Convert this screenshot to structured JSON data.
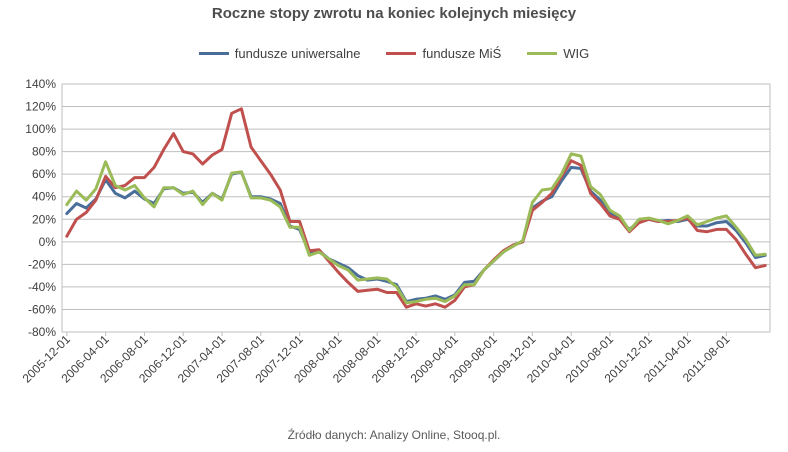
{
  "chart_data": {
    "type": "line",
    "title": "Roczne stopy zwrotu na koniec kolejnych miesięcy",
    "source": "Źródło danych: Analizy Online, Stooq.pl.",
    "xlabel": "",
    "ylabel": "",
    "ylim": [
      -0.8,
      1.4
    ],
    "yticks": [
      "140%",
      "120%",
      "100%",
      "80%",
      "60%",
      "40%",
      "20%",
      "0%",
      "-20%",
      "-40%",
      "-60%",
      "-80%"
    ],
    "x_tick_labels": [
      "2005-12-01",
      "2006-04-01",
      "2006-08-01",
      "2006-12-01",
      "2007-04-01",
      "2007-08-01",
      "2007-12-01",
      "2008-04-01",
      "2008-08-01",
      "2008-12-01",
      "2009-04-01",
      "2009-08-01",
      "2009-12-01",
      "2010-04-01",
      "2010-08-01",
      "2010-12-01",
      "2011-04-01",
      "2011-08-01"
    ],
    "x_start": "2005-12",
    "x_end": "2011-11",
    "grid": true,
    "legend_position": "top-center",
    "series": [
      {
        "name": "fundusze uniwersalne",
        "color": "#4a6e9a",
        "values": [
          0.25,
          0.34,
          0.3,
          0.38,
          0.55,
          0.43,
          0.39,
          0.45,
          0.38,
          0.34,
          0.47,
          0.48,
          0.43,
          0.44,
          0.35,
          0.43,
          0.38,
          0.6,
          0.62,
          0.4,
          0.4,
          0.38,
          0.34,
          0.14,
          0.11,
          -0.1,
          -0.08,
          -0.15,
          -0.19,
          -0.23,
          -0.3,
          -0.34,
          -0.33,
          -0.35,
          -0.38,
          -0.53,
          -0.51,
          -0.5,
          -0.48,
          -0.51,
          -0.47,
          -0.36,
          -0.35,
          -0.25,
          -0.17,
          -0.09,
          -0.03,
          0.0,
          0.3,
          0.36,
          0.4,
          0.54,
          0.66,
          0.65,
          0.45,
          0.37,
          0.25,
          0.2,
          0.11,
          0.18,
          0.2,
          0.18,
          0.19,
          0.18,
          0.2,
          0.14,
          0.14,
          0.17,
          0.18,
          0.1,
          -0.01,
          -0.14,
          -0.12
        ]
      },
      {
        "name": "fundusze MiŚ",
        "color": "#c0504d",
        "values": [
          0.05,
          0.2,
          0.26,
          0.37,
          0.58,
          0.48,
          0.5,
          0.57,
          0.57,
          0.66,
          0.82,
          0.96,
          0.8,
          0.78,
          0.69,
          0.77,
          0.82,
          1.14,
          1.18,
          0.84,
          0.72,
          0.6,
          0.46,
          0.18,
          0.18,
          -0.08,
          -0.07,
          -0.17,
          -0.27,
          -0.36,
          -0.44,
          -0.43,
          -0.42,
          -0.45,
          -0.45,
          -0.58,
          -0.55,
          -0.57,
          -0.55,
          -0.58,
          -0.52,
          -0.4,
          -0.38,
          -0.25,
          -0.16,
          -0.08,
          -0.03,
          0.0,
          0.28,
          0.35,
          0.43,
          0.58,
          0.72,
          0.68,
          0.43,
          0.34,
          0.23,
          0.2,
          0.09,
          0.17,
          0.2,
          0.18,
          0.18,
          0.19,
          0.21,
          0.1,
          0.09,
          0.11,
          0.11,
          0.02,
          -0.11,
          -0.23,
          -0.21
        ]
      },
      {
        "name": "WIG",
        "color": "#9bbb59",
        "values": [
          0.33,
          0.45,
          0.37,
          0.47,
          0.71,
          0.5,
          0.46,
          0.5,
          0.39,
          0.31,
          0.48,
          0.48,
          0.42,
          0.45,
          0.33,
          0.43,
          0.37,
          0.61,
          0.62,
          0.39,
          0.39,
          0.37,
          0.31,
          0.13,
          0.13,
          -0.12,
          -0.09,
          -0.15,
          -0.21,
          -0.25,
          -0.34,
          -0.33,
          -0.32,
          -0.33,
          -0.4,
          -0.54,
          -0.53,
          -0.51,
          -0.5,
          -0.53,
          -0.48,
          -0.38,
          -0.38,
          -0.25,
          -0.17,
          -0.09,
          -0.04,
          0.01,
          0.35,
          0.46,
          0.47,
          0.6,
          0.78,
          0.76,
          0.49,
          0.42,
          0.28,
          0.23,
          0.1,
          0.2,
          0.21,
          0.19,
          0.16,
          0.19,
          0.23,
          0.15,
          0.18,
          0.21,
          0.23,
          0.13,
          0.02,
          -0.12,
          -0.11
        ]
      }
    ]
  }
}
